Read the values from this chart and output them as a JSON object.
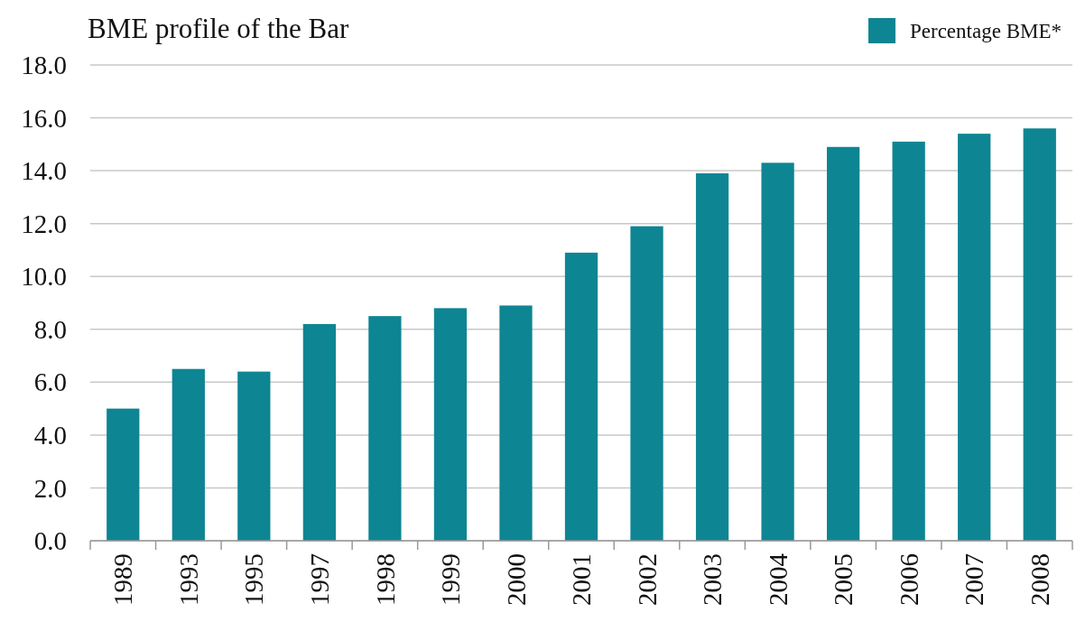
{
  "chart_data": {
    "type": "bar",
    "title": "BME profile of the Bar",
    "categories": [
      "1989",
      "1993",
      "1995",
      "1997",
      "1998",
      "1999",
      "2000",
      "2001",
      "2002",
      "2003",
      "2004",
      "2005",
      "2006",
      "2007",
      "2008"
    ],
    "series": [
      {
        "name": "Percentage BME*",
        "color": "#0e8593",
        "values": [
          5.0,
          6.5,
          6.4,
          8.2,
          8.5,
          8.8,
          8.9,
          10.9,
          11.9,
          13.9,
          14.3,
          14.9,
          15.1,
          15.4,
          15.6
        ]
      }
    ],
    "ylim": [
      0,
      18
    ],
    "yticks": [
      {
        "value": 0,
        "label": "0.0"
      },
      {
        "value": 2,
        "label": "2.0"
      },
      {
        "value": 4,
        "label": "4.0"
      },
      {
        "value": 6,
        "label": "6.0"
      },
      {
        "value": 8,
        "label": "8.0"
      },
      {
        "value": 10,
        "label": "10.0"
      },
      {
        "value": 12,
        "label": "12.0"
      },
      {
        "value": 14,
        "label": "14.0"
      },
      {
        "value": 16,
        "label": "16.0"
      },
      {
        "value": 18,
        "label": "18.0"
      }
    ],
    "grid": "y",
    "legend": "top right"
  }
}
